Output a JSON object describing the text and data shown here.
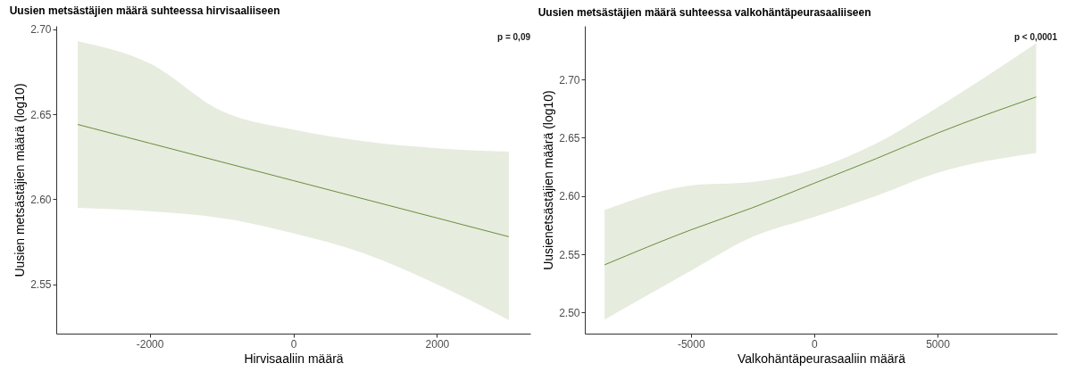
{
  "chart_data": [
    {
      "type": "line",
      "title": "Uusien metsästäjien määrä suhteessa hirvisaaliiseen",
      "xlabel": "Hirvisaaliin määrä",
      "ylabel": "Uusien metsästäjien määrä (log10)",
      "annotations": [
        "p = 0,09"
      ],
      "xlim": [
        -3300,
        3300
      ],
      "xticks": [
        -2000,
        0,
        2000
      ],
      "ylim": [
        2.521,
        2.702
      ],
      "yticks": [
        {
          "value": 2.55,
          "label": "2.55"
        },
        {
          "value": 2.6,
          "label": "2.60"
        },
        {
          "value": 2.65,
          "label": "2.65"
        },
        {
          "value": 2.7,
          "label": "2.70"
        }
      ],
      "grid": false,
      "series": [
        {
          "color": "#6b8c3a",
          "x": [
            -3000,
            -2000,
            -1000,
            0,
            1000,
            2000,
            3000
          ],
          "values": [
            2.644,
            2.633,
            2.622,
            2.611,
            2.6,
            2.589,
            2.578
          ],
          "lower": [
            2.595,
            2.593,
            2.589,
            2.58,
            2.568,
            2.55,
            2.529
          ],
          "upper": [
            2.693,
            2.68,
            2.652,
            2.641,
            2.634,
            2.63,
            2.628
          ]
        }
      ]
    },
    {
      "type": "line",
      "title": "Uusien metsästäjien määrä suhteessa valkohäntäpeurasaaliiseen",
      "xlabel": "Valkohäntäpeurasaaliin määrä",
      "ylabel": "Uusienetsästäjien määrä (log10)",
      "annotations": [
        "p < 0,0001"
      ],
      "xlim": [
        -9300,
        9850
      ],
      "xticks": [
        -5000,
        0,
        5000
      ],
      "ylim": [
        2.482,
        2.746
      ],
      "yticks": [
        {
          "value": 2.5,
          "label": "2.50"
        },
        {
          "value": 2.55,
          "label": "2.55"
        },
        {
          "value": 2.6,
          "label": "2.60"
        },
        {
          "value": 2.65,
          "label": "2.65"
        },
        {
          "value": 2.7,
          "label": "2.70"
        }
      ],
      "grid": false,
      "series": [
        {
          "color": "#6b8c3a",
          "x": [
            -8500,
            -5000,
            -2500,
            0,
            2500,
            5000,
            9000
          ],
          "values": [
            2.541,
            2.571,
            2.59,
            2.611,
            2.632,
            2.654,
            2.685
          ],
          "lower": [
            2.494,
            2.536,
            2.565,
            2.582,
            2.6,
            2.62,
            2.637
          ],
          "upper": [
            2.588,
            2.609,
            2.612,
            2.623,
            2.645,
            2.676,
            2.731
          ]
        }
      ]
    }
  ]
}
